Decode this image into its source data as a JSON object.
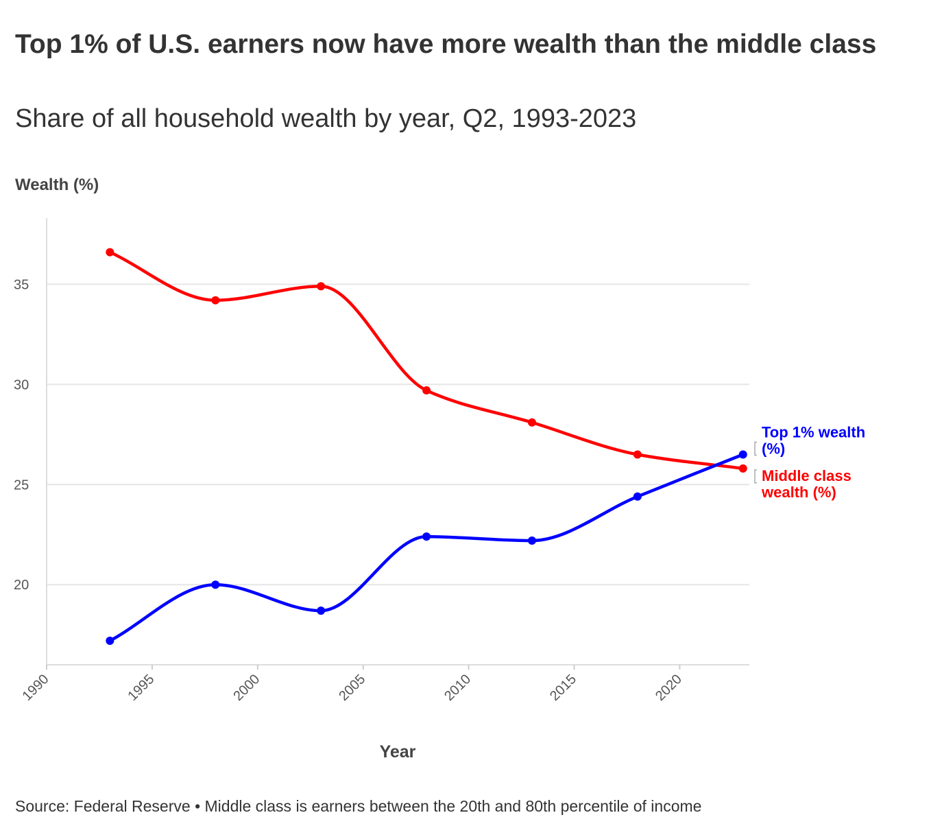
{
  "title": "Top 1% of U.S. earners now have more wealth than the middle class",
  "subtitle": "Share of all household wealth by year, Q2, 1993-2023",
  "footer": "Source: Federal Reserve • Middle class is earners between the 20th and 80th percentile of income",
  "chart_data": {
    "type": "line",
    "title": "Top 1% of U.S. earners now have more wealth than the middle class",
    "subtitle": "Share of all household wealth by year, Q2, 1993-2023",
    "xlabel": "Year",
    "ylabel": "Wealth (%)",
    "x": [
      1993,
      1998,
      2003,
      2008,
      2013,
      2018,
      2023
    ],
    "xlim": [
      1990,
      2023.3
    ],
    "ylim": [
      16,
      38.3
    ],
    "xticks": [
      1990,
      1995,
      2000,
      2005,
      2010,
      2015,
      2020
    ],
    "yticks": [
      20,
      25,
      30,
      35
    ],
    "grid": true,
    "series": [
      {
        "name": "Middle class wealth (%)",
        "label_lines": [
          "Middle class",
          "wealth (%)"
        ],
        "color": "#ff0000",
        "values": [
          36.6,
          34.2,
          34.9,
          29.7,
          28.1,
          26.5,
          25.8
        ]
      },
      {
        "name": "Top 1% wealth (%)",
        "label_lines": [
          "Top 1% wealth",
          "(%)"
        ],
        "color": "#0000ff",
        "values": [
          17.2,
          20.0,
          18.7,
          22.4,
          22.2,
          24.4,
          26.5
        ]
      }
    ]
  }
}
